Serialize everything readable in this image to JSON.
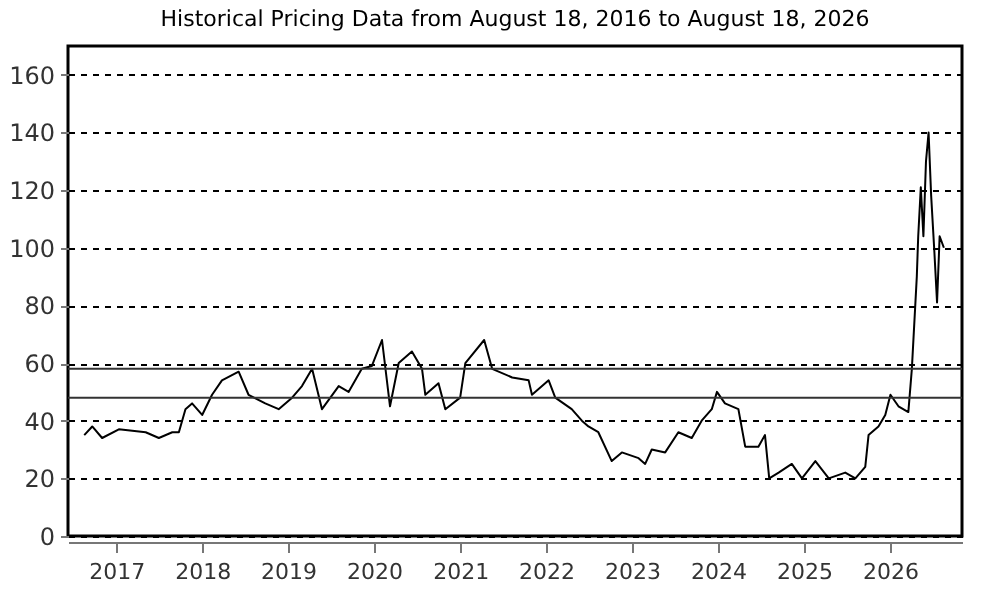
{
  "chart_data": {
    "type": "line",
    "title": "Historical Pricing Data from August 18, 2016 to August 18, 2026",
    "x": [
      "2016-08-18",
      "2016-09-21",
      "2016-11-02",
      "2017-01-12",
      "2017-05-06",
      "2017-07-01",
      "2017-08-27",
      "2017-09-24",
      "2017-10-22",
      "2017-11-19",
      "2018-01-01",
      "2018-02-12",
      "2018-03-26",
      "2018-06-05",
      "2018-07-17",
      "2018-09-26",
      "2018-11-22",
      "2019-01-18",
      "2019-03-01",
      "2019-04-13",
      "2019-05-25",
      "2019-08-04",
      "2019-09-15",
      "2019-11-10",
      "2019-12-23",
      "2020-02-04",
      "2020-03-09",
      "2020-04-15",
      "2020-06-10",
      "2020-07-23",
      "2020-08-06",
      "2020-10-01",
      "2020-10-30",
      "2021-01-01",
      "2021-01-23",
      "2021-04-13",
      "2021-05-17",
      "2021-08-10",
      "2021-10-19",
      "2021-11-02",
      "2022-01-12",
      "2022-02-09",
      "2022-04-20",
      "2022-06-02",
      "2022-06-30",
      "2022-08-11",
      "2022-10-07",
      "2022-11-19",
      "2023-01-29",
      "2023-02-26",
      "2023-03-26",
      "2023-05-22",
      "2023-07-17",
      "2023-09-12",
      "2023-10-24",
      "2023-12-06",
      "2023-12-28",
      "2024-01-31",
      "2024-03-28",
      "2024-04-26",
      "2024-06-21",
      "2024-07-19",
      "2024-08-06",
      "2024-09-15",
      "2024-11-10",
      "2024-12-23",
      "2025-02-18",
      "2025-04-16",
      "2025-06-25",
      "2025-08-07",
      "2025-09-18",
      "2025-10-02",
      "2025-11-13",
      "2025-12-12",
      "2026-01-03",
      "2026-02-06",
      "2026-03-20",
      "2026-04-04",
      "2026-04-25",
      "2026-05-01",
      "2026-05-12",
      "2026-05-23",
      "2026-06-03",
      "2026-06-14",
      "2026-06-25",
      "2026-07-09",
      "2026-07-20",
      "2026-07-31",
      "2026-08-18"
    ],
    "series": [
      {
        "color": "#000000",
        "values": [
          35,
          38,
          34,
          37,
          36,
          34,
          36,
          36,
          44,
          46,
          42,
          49,
          54,
          57,
          49,
          46,
          44,
          48,
          52,
          58,
          44,
          52,
          50,
          58,
          59,
          68,
          45,
          60,
          64,
          58,
          49,
          53,
          44,
          48,
          60,
          68,
          58,
          55,
          54,
          49,
          54,
          48,
          44,
          40,
          38,
          36,
          26,
          29,
          27,
          25,
          30,
          29,
          36,
          34,
          40,
          44,
          50,
          46,
          44,
          31,
          31,
          35,
          20,
          22,
          25,
          20,
          26,
          20,
          22,
          20,
          24,
          35,
          38,
          42,
          49,
          45,
          43,
          58,
          90,
          104,
          121,
          104,
          130,
          140,
          118,
          98,
          81,
          104,
          100
        ]
      }
    ],
    "xlim": [
      "2016-06-10",
      "2026-11-03"
    ],
    "xticks": [
      {
        "value": "2017-01-01",
        "label": "2017"
      },
      {
        "value": "2018-01-01",
        "label": "2018"
      },
      {
        "value": "2019-01-01",
        "label": "2019"
      },
      {
        "value": "2020-01-01",
        "label": "2020"
      },
      {
        "value": "2021-01-01",
        "label": "2021"
      },
      {
        "value": "2022-01-01",
        "label": "2022"
      },
      {
        "value": "2023-01-01",
        "label": "2023"
      },
      {
        "value": "2024-01-01",
        "label": "2024"
      },
      {
        "value": "2025-01-01",
        "label": "2025"
      },
      {
        "value": "2026-01-01",
        "label": "2026"
      }
    ],
    "ylim": [
      0,
      170
    ],
    "yticks": [
      0,
      20,
      40,
      60,
      80,
      100,
      120,
      140,
      160
    ],
    "grid": "y",
    "ref_lines": [
      {
        "axis": "y",
        "value": 48,
        "color": "#333333"
      },
      {
        "axis": "y",
        "value": 58,
        "color": "#333333"
      }
    ]
  }
}
